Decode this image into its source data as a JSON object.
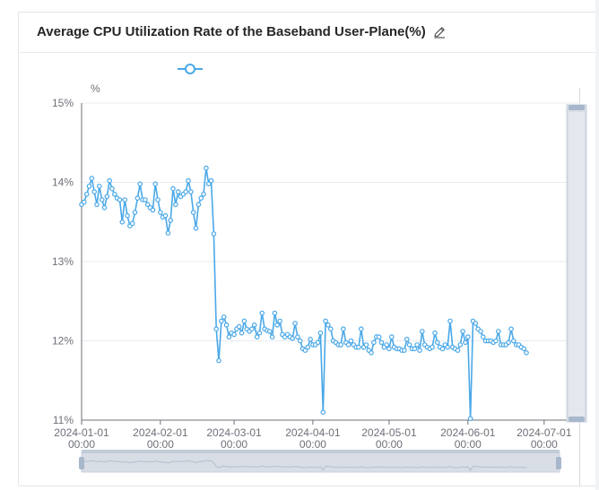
{
  "panel": {
    "title": "Average CPU Utilization Rate of the Baseband User-Plane(%)",
    "edit_icon": "pencil-icon"
  },
  "colors": {
    "series": "#4aa8e8",
    "grid": "#e8ebef",
    "axis": "#6e7079",
    "slider_fill": "#d8dde6",
    "slider_handle": "#a7b7cc"
  },
  "chart_data": {
    "type": "line",
    "title": "Average CPU Utilization Rate of the Baseband User-Plane(%)",
    "ylabel": "%",
    "xlabel": "",
    "ylim": [
      11,
      15
    ],
    "yticks": [
      "15%",
      "14%",
      "13%",
      "12%",
      "11%"
    ],
    "xticks": [
      {
        "date": "2024-01-01",
        "time": "00:00"
      },
      {
        "date": "2024-02-01",
        "time": "00:00"
      },
      {
        "date": "2024-03-01",
        "time": "00:00"
      },
      {
        "date": "2024-04-01",
        "time": "00:00"
      },
      {
        "date": "2024-05-01",
        "time": "00:00"
      },
      {
        "date": "2024-06-01",
        "time": "00:00"
      },
      {
        "date": "2024-07-01",
        "time": "00:00"
      }
    ],
    "x_start": "2024-01-01",
    "x_end": "2024-07-06",
    "legend": [
      {
        "name": ""
      }
    ],
    "series": [
      {
        "name": "",
        "start_date": "2024-01-01",
        "values": [
          13.72,
          13.75,
          13.85,
          13.95,
          14.05,
          13.88,
          13.72,
          13.95,
          13.78,
          13.68,
          13.82,
          14.02,
          13.92,
          13.85,
          13.8,
          13.78,
          13.5,
          13.78,
          13.58,
          13.45,
          13.48,
          13.62,
          13.8,
          13.98,
          13.78,
          13.78,
          13.72,
          13.68,
          13.65,
          13.98,
          13.78,
          13.62,
          13.56,
          13.58,
          13.36,
          13.52,
          13.92,
          13.72,
          13.88,
          13.82,
          13.85,
          13.88,
          14.02,
          13.88,
          13.62,
          13.42,
          13.72,
          13.8,
          13.85,
          14.18,
          13.98,
          14.02,
          13.35,
          12.15,
          11.75,
          12.25,
          12.3,
          12.2,
          12.05,
          12.1,
          12.08,
          12.15,
          12.18,
          12.1,
          12.25,
          12.15,
          12.12,
          12.15,
          12.2,
          12.05,
          12.1,
          12.35,
          12.15,
          12.13,
          12.12,
          12.05,
          12.35,
          12.2,
          12.25,
          12.08,
          12.05,
          12.08,
          12.05,
          12.03,
          12.22,
          12.05,
          12.0,
          11.9,
          11.88,
          11.92,
          12.02,
          11.95,
          11.95,
          11.98,
          12.1,
          11.1,
          12.25,
          12.2,
          12.15,
          12.0,
          11.98,
          11.95,
          11.95,
          12.15,
          11.98,
          11.95,
          12.0,
          11.95,
          11.92,
          11.92,
          12.15,
          11.92,
          11.95,
          11.88,
          11.85,
          11.98,
          12.05,
          12.05,
          11.98,
          11.92,
          11.95,
          11.9,
          12.05,
          11.92,
          11.9,
          11.9,
          11.88,
          11.88,
          12.02,
          11.95,
          11.9,
          11.9,
          11.95,
          11.88,
          12.12,
          11.95,
          11.92,
          11.9,
          11.92,
          12.1,
          11.98,
          11.92,
          11.9,
          11.95,
          11.92,
          12.25,
          11.92,
          11.9,
          11.88,
          11.95,
          12.12,
          11.98,
          12.05,
          11.02,
          12.25,
          12.22,
          12.15,
          12.12,
          12.05,
          12.0,
          12.0,
          12.0,
          11.98,
          12.0,
          12.12,
          11.95,
          11.95,
          11.95,
          11.98,
          12.15,
          12.0,
          11.95,
          11.95,
          11.92,
          11.9,
          11.85
        ]
      }
    ],
    "data_zoom": {
      "start_percent": 0,
      "end_percent": 100
    }
  }
}
